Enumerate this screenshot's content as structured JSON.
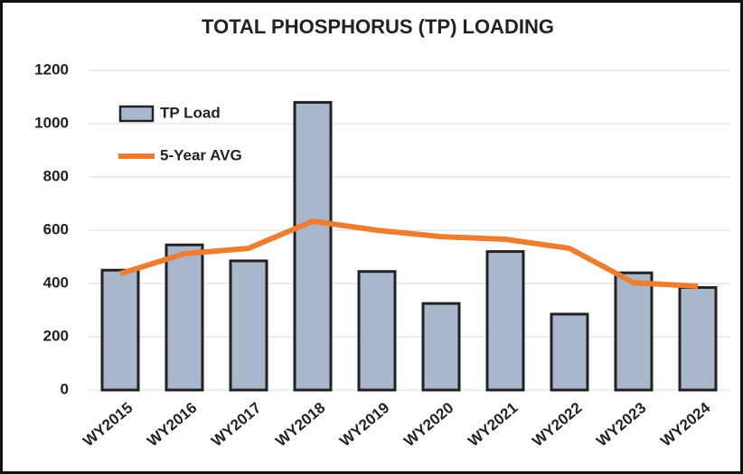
{
  "chart_data": {
    "type": "bar",
    "title": "TOTAL PHOSPHORUS (TP) LOADING",
    "categories": [
      "WY2015",
      "WY2016",
      "WY2017",
      "WY2018",
      "WY2019",
      "WY2020",
      "WY2021",
      "WY2022",
      "WY2023",
      "WY2024"
    ],
    "series": [
      {
        "name": "TP Load",
        "type": "bar",
        "color": "#a9b7cc",
        "values": [
          450,
          545,
          485,
          1080,
          445,
          325,
          520,
          285,
          440,
          385
        ]
      },
      {
        "name": "5-Year AVG",
        "type": "line",
        "color": "#ed7d31",
        "values": [
          437,
          512,
          532,
          634,
          600,
          576,
          566,
          532,
          403,
          390
        ]
      }
    ],
    "ylim": [
      0,
      1200
    ],
    "yticks": [
      0,
      200,
      400,
      600,
      800,
      1000,
      1200
    ],
    "grid": true,
    "legend": "upper left"
  }
}
